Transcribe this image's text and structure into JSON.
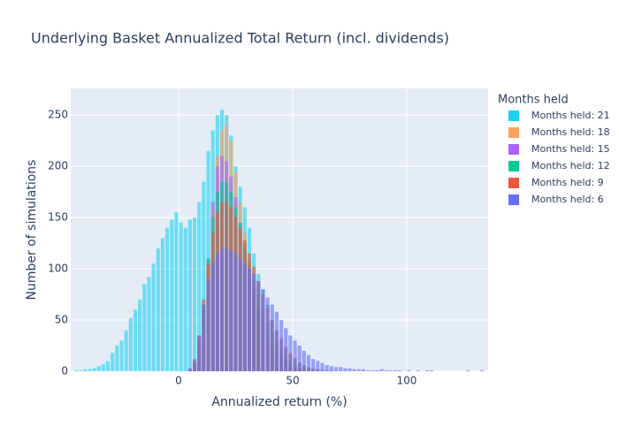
{
  "chart_data": {
    "type": "histogram",
    "title": "Underlying Basket Annualized Total Return (incl. dividends)",
    "x_label": "Annualized return (%)",
    "y_label": "Number of simulations",
    "legend_title": "Months held",
    "legend_position": "right",
    "grid": true,
    "xlim": [
      -47.3,
      135.7
    ],
    "ylim": [
      0,
      276
    ],
    "xticks": [
      0,
      50,
      100
    ],
    "yticks": [
      0,
      50,
      100,
      150,
      200,
      250
    ],
    "bins": [
      -46,
      -44,
      -42,
      -40,
      -38,
      -36,
      -34,
      -32,
      -30,
      -28,
      -26,
      -24,
      -22,
      -20,
      -18,
      -16,
      -14,
      -12,
      -10,
      -8,
      -6,
      -4,
      -2,
      0,
      2,
      4,
      6,
      8,
      10,
      12,
      14,
      16,
      18,
      20,
      22,
      24,
      26,
      28,
      30,
      32,
      34,
      36,
      38,
      40,
      42,
      44,
      46,
      48,
      50,
      52,
      54,
      56,
      58,
      60,
      62,
      64,
      66,
      68,
      70,
      72,
      74,
      76,
      78,
      80,
      82,
      84,
      86,
      88,
      90,
      92,
      94,
      96,
      98,
      100,
      102,
      104,
      106,
      108,
      110,
      112,
      114,
      116,
      118,
      120,
      122,
      124,
      126,
      128,
      130,
      132,
      134
    ],
    "series": [
      {
        "name": "Months held: 21",
        "color": "#19d3f3",
        "values": [
          1,
          1,
          2,
          2,
          3,
          5,
          7,
          10,
          18,
          25,
          30,
          40,
          52,
          60,
          70,
          85,
          92,
          105,
          120,
          130,
          140,
          148,
          155,
          145,
          140,
          148,
          150,
          165,
          185,
          215,
          235,
          250,
          255,
          250,
          230,
          200,
          180,
          160,
          140,
          115,
          95,
          80,
          65,
          50,
          40,
          30,
          22,
          16,
          12,
          8,
          6,
          4,
          3,
          2,
          2,
          1,
          1,
          0,
          0,
          0,
          0,
          0,
          0,
          0,
          0,
          0,
          0,
          0,
          0,
          0,
          0,
          0,
          0,
          0,
          0,
          0,
          0,
          0,
          0,
          0,
          0,
          0,
          0,
          0,
          0,
          0,
          0,
          0,
          0,
          0
        ]
      },
      {
        "name": "Months held: 18",
        "color": "#ffa15a",
        "values": [
          0,
          0,
          0,
          0,
          0,
          0,
          0,
          0,
          0,
          0,
          0,
          0,
          0,
          0,
          0,
          0,
          0,
          0,
          0,
          0,
          0,
          0,
          0,
          0,
          0,
          2,
          5,
          20,
          50,
          100,
          160,
          210,
          235,
          240,
          225,
          195,
          165,
          135,
          105,
          80,
          60,
          42,
          30,
          20,
          12,
          8,
          5,
          3,
          2,
          1,
          0,
          0,
          0,
          0,
          0,
          0,
          0,
          0,
          0,
          0,
          0,
          0,
          0,
          0,
          0,
          0,
          0,
          0,
          0,
          0,
          0,
          0,
          0,
          0,
          0,
          0,
          0,
          0,
          0,
          0,
          0,
          0,
          0,
          0,
          0,
          0,
          0,
          0,
          0,
          0
        ]
      },
      {
        "name": "Months held: 15",
        "color": "#ab63fa",
        "values": [
          0,
          0,
          0,
          0,
          0,
          0,
          0,
          0,
          0,
          0,
          0,
          0,
          0,
          0,
          0,
          0,
          0,
          0,
          0,
          0,
          0,
          0,
          0,
          0,
          0,
          1,
          6,
          25,
          60,
          110,
          165,
          200,
          210,
          205,
          190,
          170,
          145,
          120,
          100,
          80,
          62,
          48,
          35,
          25,
          18,
          12,
          8,
          5,
          3,
          2,
          1,
          0,
          0,
          0,
          0,
          0,
          0,
          0,
          0,
          0,
          0,
          0,
          0,
          0,
          0,
          0,
          0,
          0,
          0,
          0,
          0,
          0,
          0,
          0,
          0,
          0,
          0,
          0,
          0,
          0,
          0,
          0,
          0,
          0,
          0,
          0,
          0,
          0,
          0,
          0
        ]
      },
      {
        "name": "Months held: 12",
        "color": "#00cc96",
        "values": [
          0,
          0,
          0,
          0,
          0,
          0,
          0,
          0,
          0,
          0,
          0,
          0,
          0,
          0,
          0,
          0,
          0,
          0,
          0,
          0,
          0,
          0,
          0,
          0,
          0,
          1,
          8,
          30,
          65,
          110,
          150,
          175,
          185,
          185,
          175,
          160,
          145,
          125,
          108,
          90,
          75,
          60,
          48,
          38,
          28,
          20,
          14,
          10,
          6,
          4,
          3,
          2,
          1,
          0,
          0,
          0,
          0,
          0,
          0,
          0,
          0,
          0,
          0,
          0,
          0,
          0,
          0,
          0,
          0,
          0,
          0,
          0,
          0,
          0,
          0,
          0,
          0,
          0,
          0,
          0,
          0,
          0,
          0,
          0,
          0,
          0,
          0,
          0,
          0,
          0
        ]
      },
      {
        "name": "Months held: 9",
        "color": "#ef553b",
        "values": [
          0,
          0,
          0,
          0,
          0,
          0,
          0,
          0,
          0,
          0,
          0,
          0,
          0,
          0,
          0,
          0,
          0,
          0,
          0,
          0,
          0,
          0,
          0,
          0,
          0,
          2,
          10,
          35,
          70,
          105,
          135,
          155,
          165,
          165,
          160,
          150,
          140,
          128,
          115,
          102,
          88,
          75,
          62,
          50,
          40,
          32,
          24,
          18,
          13,
          9,
          6,
          4,
          3,
          2,
          1,
          0,
          0,
          0,
          0,
          0,
          0,
          0,
          0,
          0,
          0,
          0,
          0,
          0,
          0,
          0,
          0,
          0,
          0,
          0,
          0,
          0,
          0,
          0,
          0,
          0,
          0,
          0,
          0,
          0,
          0,
          0,
          0,
          0,
          0,
          0
        ]
      },
      {
        "name": "Months held: 6",
        "color": "#636efa",
        "values": [
          0,
          0,
          0,
          0,
          0,
          0,
          0,
          0,
          0,
          0,
          0,
          0,
          0,
          0,
          0,
          0,
          0,
          0,
          0,
          0,
          0,
          0,
          0,
          0,
          0,
          3,
          12,
          35,
          65,
          90,
          105,
          115,
          120,
          120,
          118,
          115,
          110,
          105,
          100,
          95,
          88,
          80,
          72,
          65,
          58,
          50,
          42,
          35,
          30,
          25,
          20,
          16,
          12,
          10,
          8,
          6,
          5,
          4,
          4,
          3,
          3,
          2,
          2,
          2,
          1,
          1,
          1,
          2,
          1,
          1,
          1,
          1,
          0,
          1,
          0,
          1,
          0,
          1,
          1,
          0,
          0,
          0,
          0,
          0,
          0,
          0,
          1,
          0,
          0,
          1
        ]
      }
    ]
  }
}
